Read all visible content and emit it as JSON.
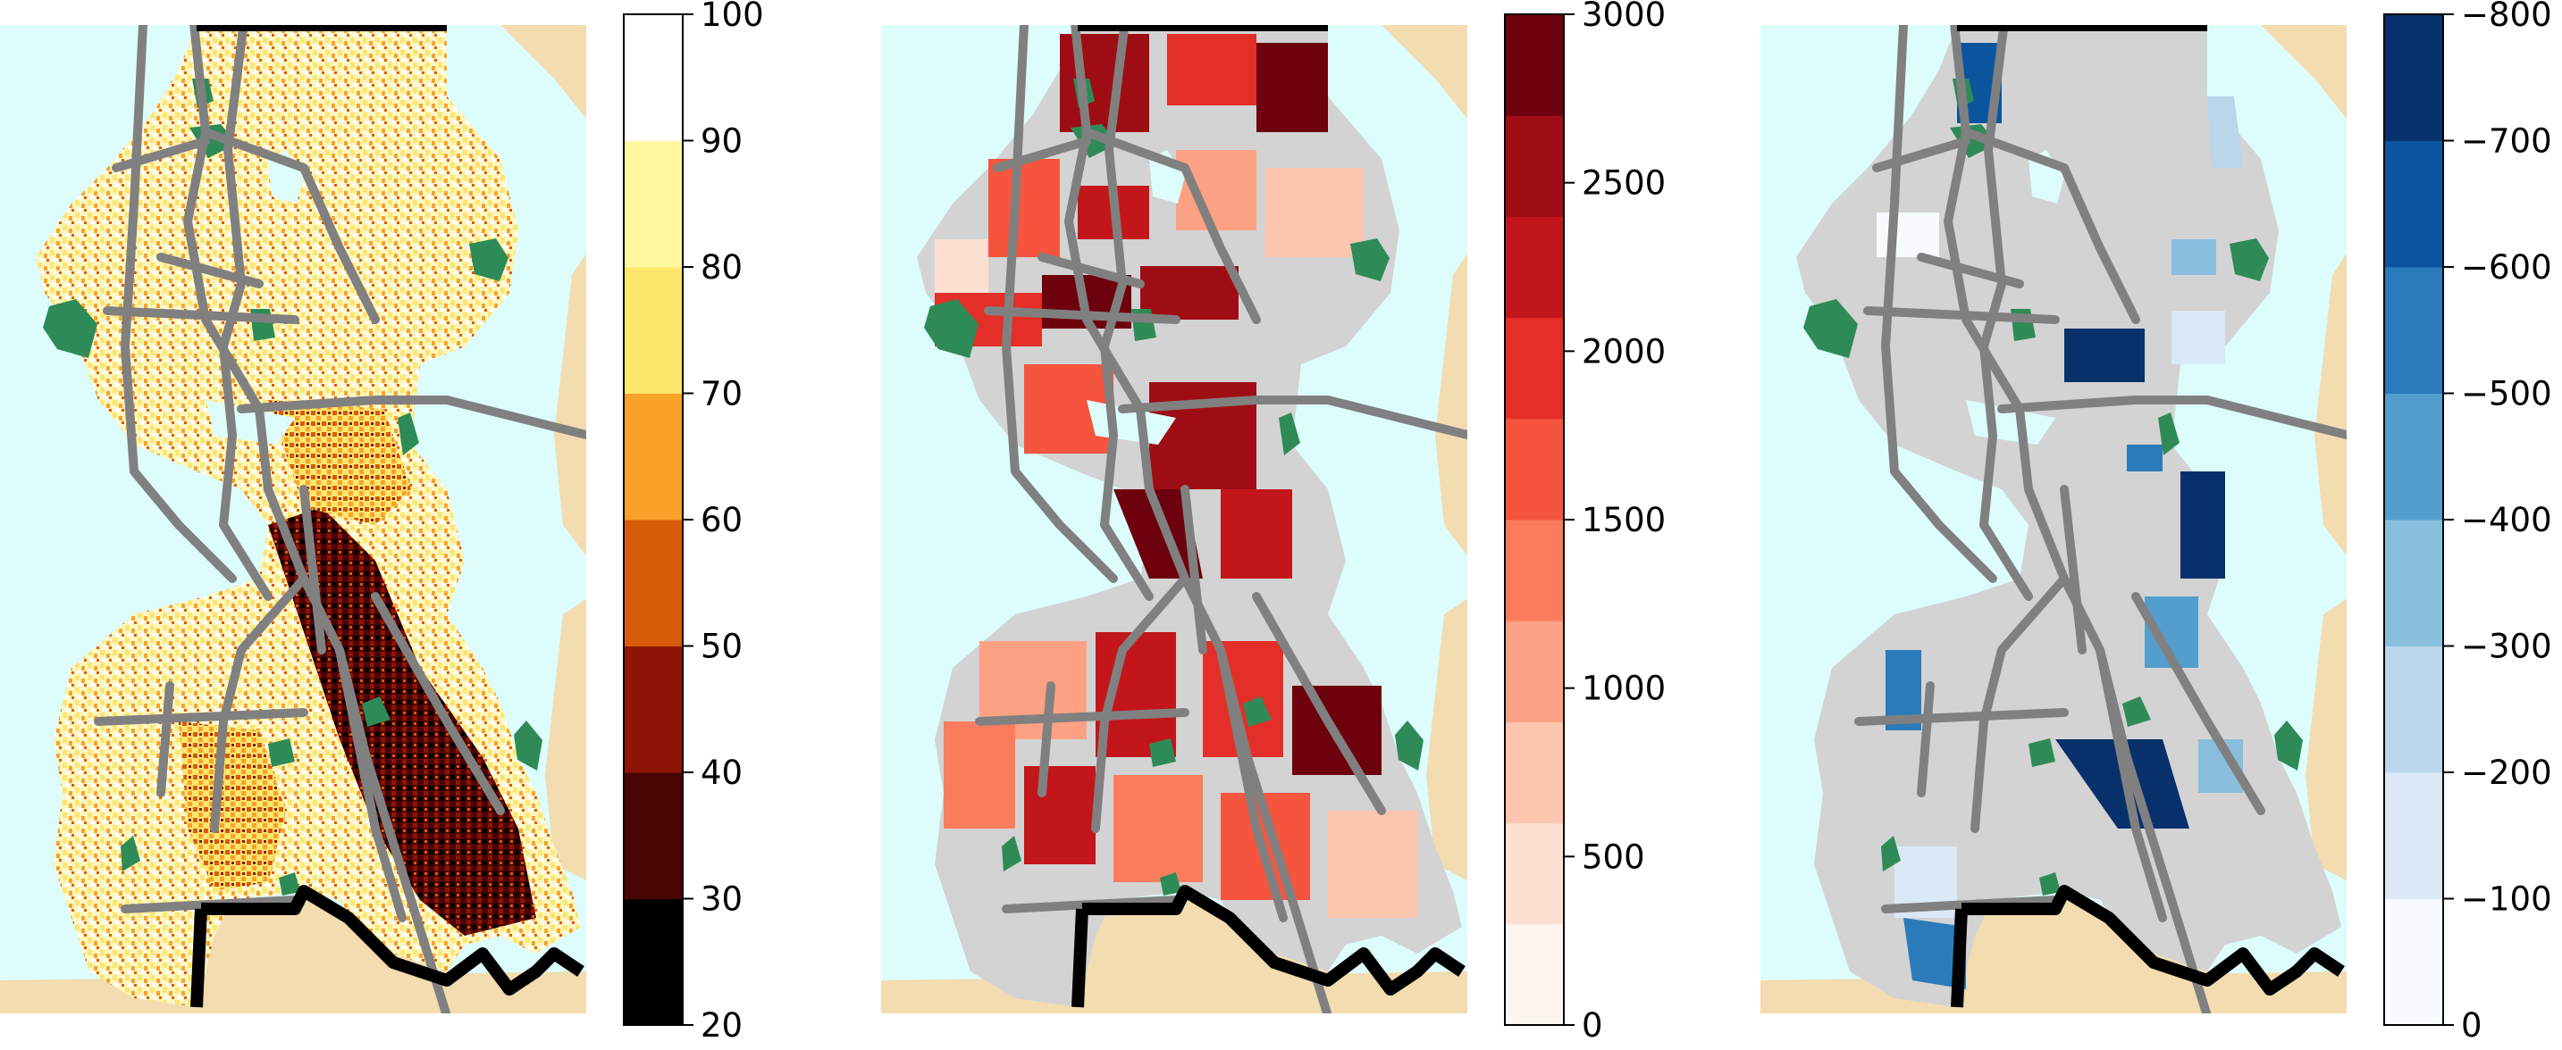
{
  "panels": [
    {
      "id": "panel-1",
      "colorbar": {
        "labels": [
          "20",
          "30",
          "40",
          "50",
          "60",
          "70",
          "80",
          "90",
          "100"
        ],
        "colors": [
          "#000000",
          "#4a0404",
          "#8f1405",
          "#d85b0a",
          "#f9a22a",
          "#fde66e",
          "#fff6a0",
          "#ffffff"
        ]
      },
      "map_style": "parcel-scores-hot"
    },
    {
      "id": "panel-2",
      "colorbar": {
        "labels": [
          "0",
          "500",
          "1000",
          "1500",
          "2000",
          "2500",
          "3000"
        ],
        "colors": [
          "#fff5f0",
          "#fee0d2",
          "#fcc5ae",
          "#fca183",
          "#fb7c5c",
          "#f5553d",
          "#e32f27",
          "#c2161b",
          "#9f0d14",
          "#6d010e"
        ]
      },
      "map_style": "zone-values-reds"
    },
    {
      "id": "panel-3",
      "colorbar": {
        "labels": [
          "0",
          "−100",
          "−200",
          "−300",
          "−400",
          "−500",
          "−600",
          "−700",
          "−800"
        ],
        "colors": [
          "#f7fbff",
          "#dbe9f6",
          "#bad6eb",
          "#89bedc",
          "#539ecd",
          "#2b7bba",
          "#0b559f",
          "#08306b"
        ]
      },
      "map_style": "zone-changes-blues"
    }
  ],
  "map_colors": {
    "water": "#ddfdfd",
    "land_outside": "#f2dcb0",
    "land_nodata": "#d3d3d3",
    "park": "#2e8b57",
    "highway": "#808080",
    "boundary": "#000000"
  }
}
